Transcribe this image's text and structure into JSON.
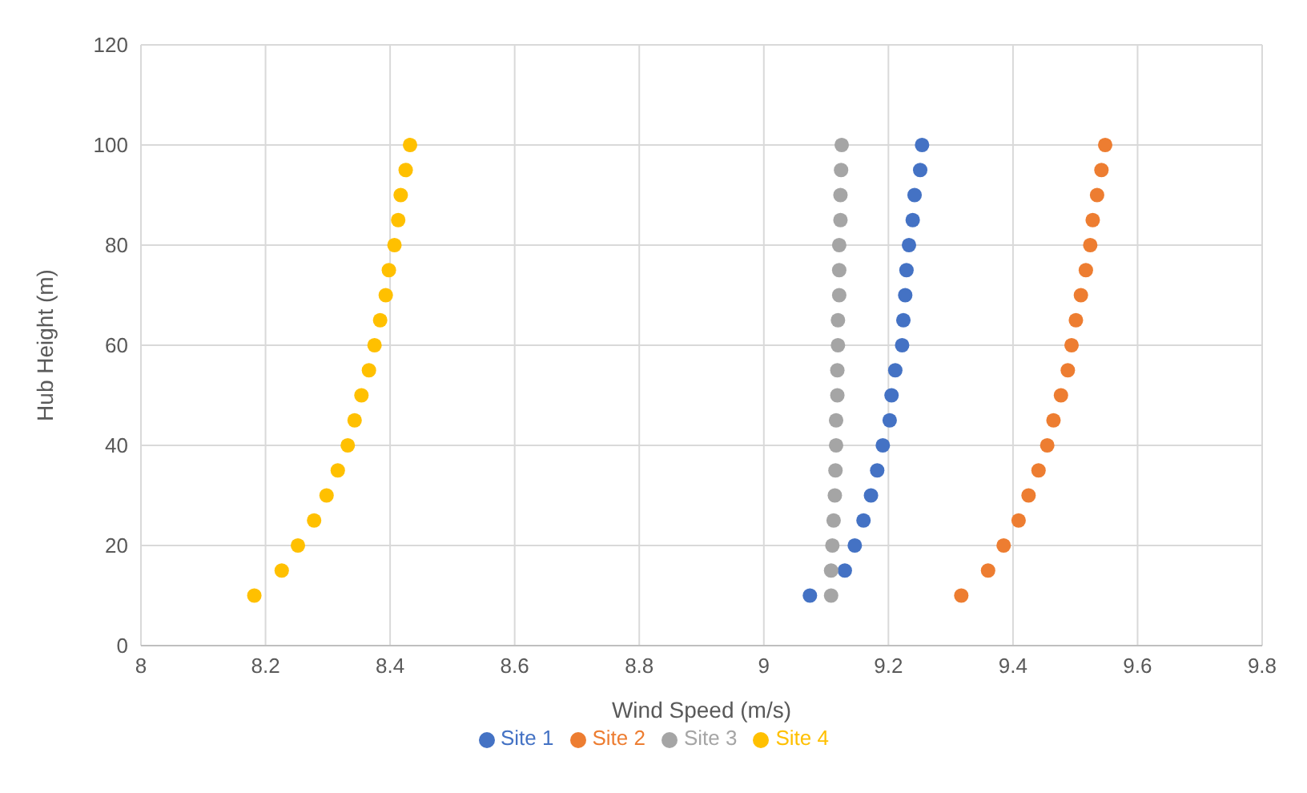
{
  "chart_data": {
    "type": "scatter",
    "xlabel": "Wind Speed (m/s)",
    "ylabel": "Hub Height (m)",
    "xlim": [
      8,
      9.8
    ],
    "xticks": [
      8,
      8.2,
      8.4,
      8.6,
      8.8,
      9,
      9.2,
      9.4,
      9.6,
      9.8
    ],
    "ylim": [
      0,
      120
    ],
    "yticks": [
      0,
      20,
      40,
      60,
      80,
      100,
      120
    ],
    "grid": true,
    "legend": "bottom",
    "marker": "circle",
    "series": [
      {
        "name": "Site 1",
        "color": "#4472c4",
        "x": [
          9.074,
          9.13,
          9.146,
          9.16,
          9.172,
          9.182,
          9.191,
          9.202,
          9.205,
          9.211,
          9.222,
          9.224,
          9.227,
          9.229,
          9.233,
          9.239,
          9.242,
          9.251,
          9.254
        ],
        "values": [
          10,
          15,
          20,
          25,
          30,
          35,
          40,
          45,
          50,
          55,
          60,
          65,
          70,
          75,
          80,
          85,
          90,
          95,
          100
        ]
      },
      {
        "name": "Site 2",
        "color": "#ed7d31",
        "x": [
          9.317,
          9.36,
          9.385,
          9.409,
          9.425,
          9.441,
          9.455,
          9.465,
          9.477,
          9.488,
          9.494,
          9.501,
          9.509,
          9.517,
          9.524,
          9.528,
          9.535,
          9.542,
          9.548
        ],
        "values": [
          10,
          15,
          20,
          25,
          30,
          35,
          40,
          45,
          50,
          55,
          60,
          65,
          70,
          75,
          80,
          85,
          90,
          95,
          100
        ]
      },
      {
        "name": "Site 3",
        "color": "#a5a5a5",
        "x": [
          9.108,
          9.108,
          9.11,
          9.112,
          9.114,
          9.115,
          9.116,
          9.116,
          9.118,
          9.118,
          9.119,
          9.119,
          9.121,
          9.121,
          9.121,
          9.123,
          9.123,
          9.124,
          9.125
        ],
        "values": [
          10,
          15,
          20,
          25,
          30,
          35,
          40,
          45,
          50,
          55,
          60,
          65,
          70,
          75,
          80,
          85,
          90,
          95,
          100
        ]
      },
      {
        "name": "Site 4",
        "color": "#ffc000",
        "x": [
          8.182,
          8.226,
          8.252,
          8.278,
          8.298,
          8.316,
          8.332,
          8.343,
          8.354,
          8.366,
          8.375,
          8.384,
          8.393,
          8.398,
          8.407,
          8.413,
          8.417,
          8.425,
          8.432
        ],
        "values": [
          10,
          15,
          20,
          25,
          30,
          35,
          40,
          45,
          50,
          55,
          60,
          65,
          70,
          75,
          80,
          85,
          90,
          95,
          100
        ]
      }
    ]
  }
}
